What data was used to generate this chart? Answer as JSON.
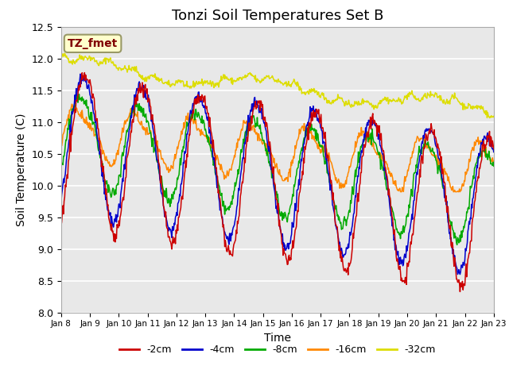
{
  "title": "Tonzi Soil Temperatures Set B",
  "xlabel": "Time",
  "ylabel": "Soil Temperature (C)",
  "ylim": [
    8.0,
    12.5
  ],
  "yticks": [
    8.0,
    8.5,
    9.0,
    9.5,
    10.0,
    10.5,
    11.0,
    11.5,
    12.0,
    12.5
  ],
  "xtick_labels": [
    "Jan 8",
    "Jan 9",
    "Jan 10",
    "Jan 11",
    "Jan 12",
    "Jan 13",
    "Jan 14",
    "Jan 15",
    "Jan 16",
    "Jan 17",
    "Jan 18",
    "Jan 19",
    "Jan 20",
    "Jan 21",
    "Jan 22",
    "Jan 23"
  ],
  "legend_labels": [
    "-2cm",
    "-4cm",
    "-8cm",
    "-16cm",
    "-32cm"
  ],
  "line_colors": [
    "#cc0000",
    "#0000cc",
    "#00aa00",
    "#ff8800",
    "#dddd00"
  ],
  "annotation_text": "TZ_fmet",
  "annotation_color": "#800000",
  "annotation_bg": "#ffffcc",
  "plot_bg": "#e8e8e8",
  "grid_color": "#ffffff",
  "n_points": 720,
  "title_fontsize": 13,
  "figsize": [
    6.4,
    4.8
  ],
  "dpi": 100
}
